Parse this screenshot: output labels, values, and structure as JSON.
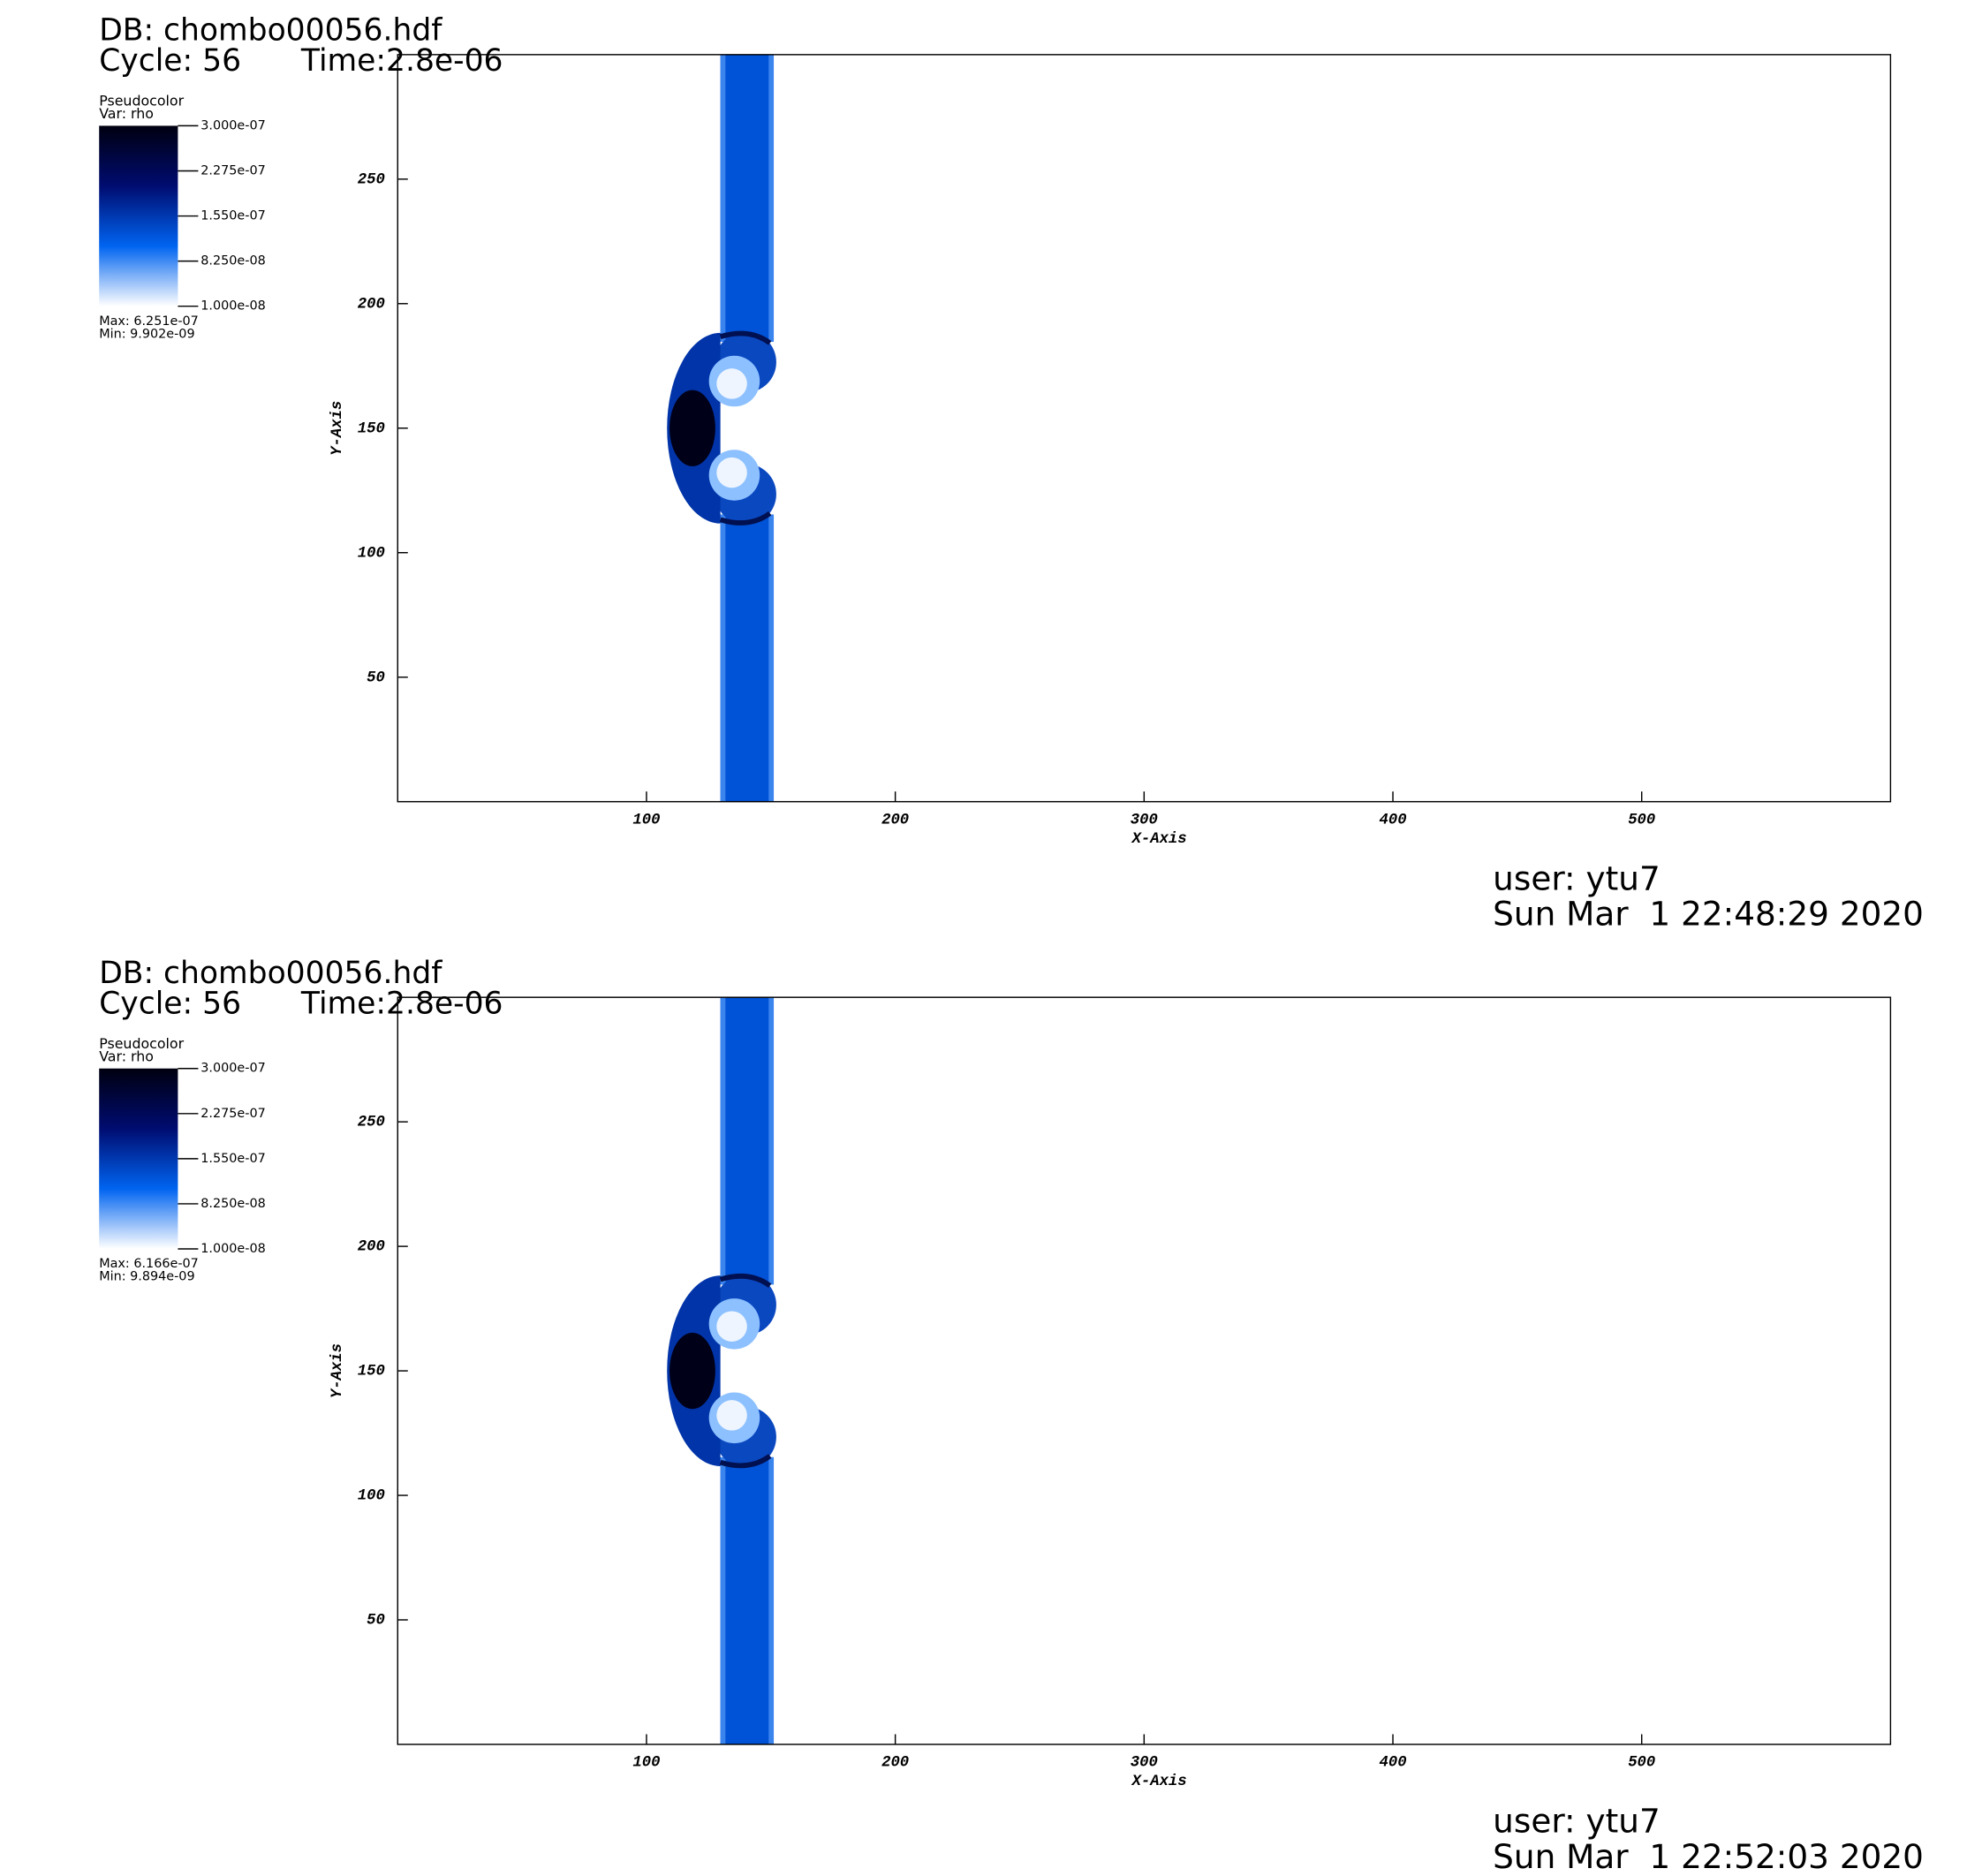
{
  "chart_data": [
    {
      "type": "pseudocolor",
      "title": "DB: chombo00056.hdf",
      "cycle": "Cycle: 56",
      "time": "Time:2.8e-06",
      "plot_name": "Pseudocolor",
      "variable": "Var: rho",
      "colorbar": {
        "clim": [
          1e-08,
          3e-07
        ],
        "ticks": [
          {
            "value": 3e-07,
            "label": "3.000e-07"
          },
          {
            "value": 2.275e-07,
            "label": "2.275e-07"
          },
          {
            "value": 1.55e-07,
            "label": "1.550e-07"
          },
          {
            "value": 8.25e-08,
            "label": "8.250e-08"
          },
          {
            "value": 1e-08,
            "label": "1.000e-08"
          }
        ],
        "colors": [
          "#000010",
          "#000c70",
          "#0064f0",
          "#ffffff"
        ],
        "max_label": "Max: 6.251e-07",
        "min_label": "Min: 9.902e-09"
      },
      "xlabel": "X-Axis",
      "ylabel": "Y-Axis",
      "xlim": [
        0,
        600
      ],
      "ylim": [
        0,
        300
      ],
      "xticks": [
        100,
        200,
        300,
        400,
        500
      ],
      "yticks": [
        50,
        100,
        150,
        200,
        250
      ],
      "user": "user: ytu7",
      "date": "Sun Mar  1 22:48:29 2020"
    },
    {
      "type": "pseudocolor",
      "title": "DB: chombo00056.hdf",
      "cycle": "Cycle: 56",
      "time": "Time:2.8e-06",
      "plot_name": "Pseudocolor",
      "variable": "Var: rho",
      "colorbar": {
        "clim": [
          1e-08,
          3e-07
        ],
        "ticks": [
          {
            "value": 3e-07,
            "label": "3.000e-07"
          },
          {
            "value": 2.275e-07,
            "label": "2.275e-07"
          },
          {
            "value": 1.55e-07,
            "label": "1.550e-07"
          },
          {
            "value": 8.25e-08,
            "label": "8.250e-08"
          },
          {
            "value": 1e-08,
            "label": "1.000e-08"
          }
        ],
        "colors": [
          "#000010",
          "#000c70",
          "#0064f0",
          "#ffffff"
        ],
        "max_label": "Max: 6.166e-07",
        "min_label": "Min: 9.894e-09"
      },
      "xlabel": "X-Axis",
      "ylabel": "Y-Axis",
      "xlim": [
        0,
        600
      ],
      "ylim": [
        0,
        300
      ],
      "xticks": [
        100,
        200,
        300,
        400,
        500
      ],
      "yticks": [
        50,
        100,
        150,
        200,
        250
      ],
      "user": "user: ytu7",
      "date": "Sun Mar  1 22:52:03 2020"
    }
  ]
}
